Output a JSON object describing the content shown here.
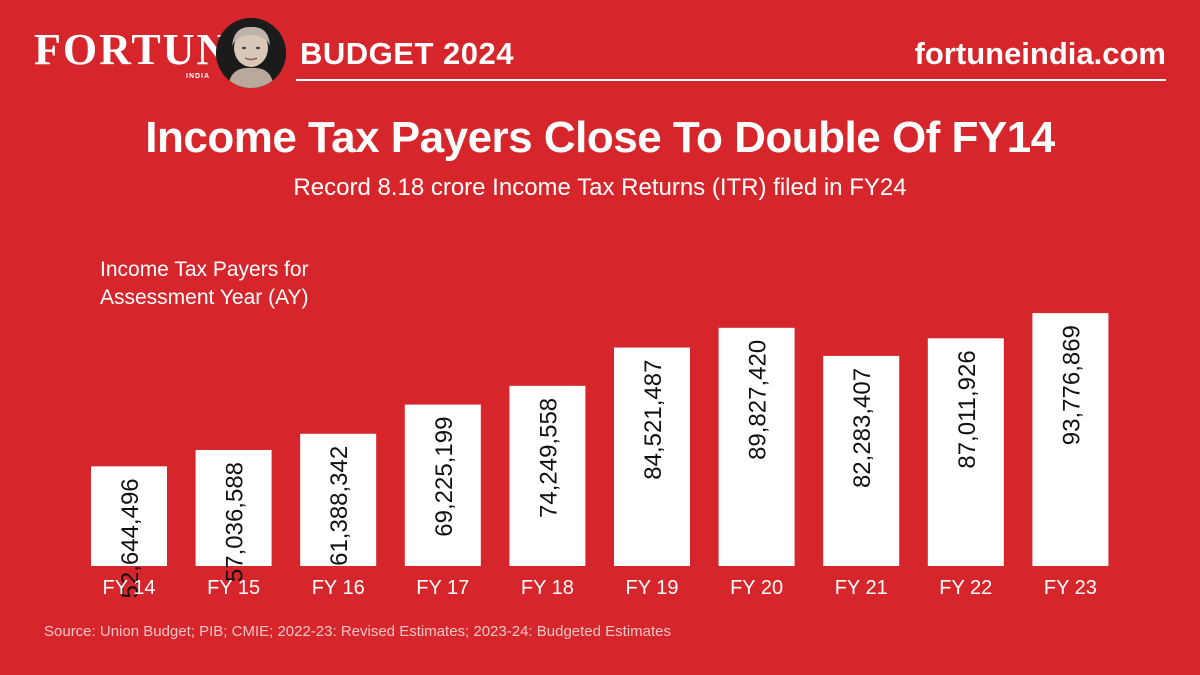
{
  "header": {
    "logo": "FORTUNE",
    "logo_sub": "INDIA",
    "section": "BUDGET 2024",
    "site": "fortuneindia.com"
  },
  "chart_data": {
    "type": "bar",
    "title": "Income Tax Payers Close To Double Of FY14",
    "subtitle": "Record 8.18 crore Income Tax Returns (ITR) filed in FY24",
    "series_label": "Income Tax Payers for Assessment Year (AY)",
    "categories": [
      "FY 14",
      "FY 15",
      "FY 16",
      "FY 17",
      "FY 18",
      "FY 19",
      "FY 20",
      "FY 21",
      "FY 22",
      "FY 23"
    ],
    "values": [
      52644496,
      57036588,
      61388342,
      69225199,
      74249558,
      84521487,
      89827420,
      82283407,
      87011926,
      93776869
    ],
    "value_labels": [
      "52,644,496",
      "57,036,588",
      "61,388,342",
      "69,225,199",
      "74,249,558",
      "84,521,487",
      "89,827,420",
      "82,283,407",
      "87,011,926",
      "93,776,869"
    ],
    "ylim": [
      0,
      100000000
    ],
    "grid": false,
    "colors": {
      "background": "#d7262b",
      "bar": "#ffffff",
      "bar_label": "#111111",
      "text": "#ffffff"
    }
  },
  "source": "Source: Union Budget; PIB; CMIE; 2022-23: Revised Estimates; 2023-24: Budgeted Estimates",
  "icons": {
    "portrait": "portrait-icon"
  }
}
